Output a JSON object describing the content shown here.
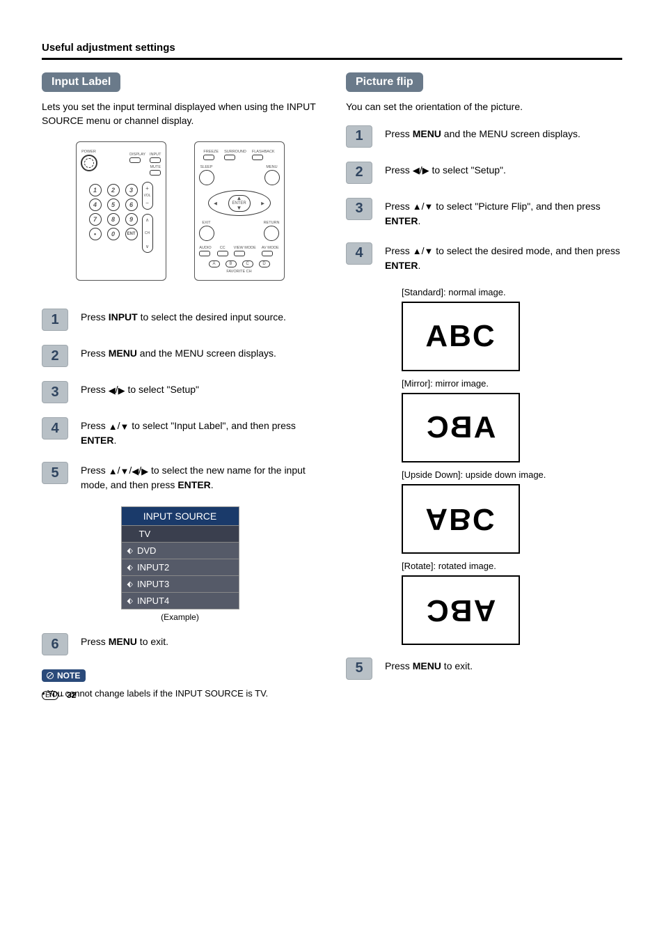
{
  "header": {
    "section_title": "Useful adjustment settings"
  },
  "left": {
    "heading": "Input Label",
    "intro": "Lets you set the input terminal displayed when using the INPUT SOURCE menu or channel display.",
    "remote_left": {
      "labels": {
        "power": "POWER",
        "display": "DISPLAY",
        "input": "INPUT",
        "mute": "MUTE",
        "vol": "VOL",
        "ch": "CH",
        "ent": "ENT"
      },
      "numpad": [
        "1",
        "2",
        "3",
        "4",
        "5",
        "6",
        "7",
        "8",
        "9",
        "0"
      ]
    },
    "remote_right": {
      "labels": {
        "freeze": "FREEZE",
        "surround": "SURROUND",
        "flashback": "FLASHBACK",
        "sleep": "SLEEP",
        "menu": "MENU",
        "enter": "ENTER",
        "exit": "EXIT",
        "return": "RETURN",
        "audio": "AUDIO",
        "cc": "CC",
        "viewmode": "VIEW MODE",
        "avmode": "AV MODE",
        "favorite": "FAVORITE CH"
      },
      "letters": [
        "A",
        "B",
        "C",
        "D"
      ]
    },
    "steps": [
      {
        "num": "1",
        "text_before": "Press ",
        "bold1": "INPUT",
        "text_after": " to select the desired input source."
      },
      {
        "num": "2",
        "text_before": "Press ",
        "bold1": "MENU",
        "text_after": " and the MENU screen displays."
      },
      {
        "num": "3",
        "text_before": "Press ",
        "arrows": "lr",
        "text_after": " to select \"Setup\""
      },
      {
        "num": "4",
        "text_before": "Press ",
        "arrows": "ud",
        "text_mid": " to select \"Input Label\", and then press ",
        "bold2": "ENTER",
        "text_end": "."
      },
      {
        "num": "5",
        "text_before": "Press ",
        "arrows": "udlr",
        "text_mid": " to select the new name for the input mode, and then press ",
        "bold2": "ENTER",
        "text_end": "."
      }
    ],
    "input_source": {
      "title": "INPUT SOURCE",
      "items": [
        {
          "label": "TV",
          "icon": false,
          "selected": true
        },
        {
          "label": "DVD",
          "icon": true,
          "selected": false
        },
        {
          "label": "INPUT2",
          "icon": true,
          "selected": false
        },
        {
          "label": "INPUT3",
          "icon": true,
          "selected": false
        },
        {
          "label": "INPUT4",
          "icon": true,
          "selected": false
        }
      ],
      "caption": "(Example)"
    },
    "step6": {
      "num": "6",
      "text_before": "Press ",
      "bold1": "MENU",
      "text_after": " to exit."
    },
    "note": {
      "badge": "NOTE",
      "text": "• You cannot change labels if the INPUT SOURCE is TV."
    }
  },
  "right": {
    "heading": "Picture flip",
    "intro": "You can set the orientation of the picture.",
    "steps": [
      {
        "num": "1",
        "text_before": "Press ",
        "bold1": "MENU",
        "text_after": " and the MENU screen displays."
      },
      {
        "num": "2",
        "text_before": "Press ",
        "arrows": "lr",
        "text_after": " to select \"Setup\"."
      },
      {
        "num": "3",
        "text_before": "Press ",
        "arrows": "ud",
        "text_mid": " to select \"Picture Flip\", and then press ",
        "bold2": "ENTER",
        "text_end": "."
      },
      {
        "num": "4",
        "text_before": "Press ",
        "arrows": "ud",
        "text_mid": " to select the desired mode, and then press ",
        "bold2": "ENTER",
        "text_end": "."
      }
    ],
    "modes": [
      {
        "label": "[Standard]: normal image.",
        "transform": "none"
      },
      {
        "label": "[Mirror]: mirror image.",
        "transform": "mirror"
      },
      {
        "label": "[Upside Down]: upside down image.",
        "transform": "upside"
      },
      {
        "label": "[Rotate]: rotated image.",
        "transform": "rotate"
      }
    ],
    "abc_text": "ABC",
    "step5": {
      "num": "5",
      "text_before": "Press ",
      "bold1": "MENU",
      "text_after": " to exit."
    }
  },
  "footer": {
    "lang": "EN",
    "sep": "-",
    "page": "32"
  },
  "colors": {
    "pill_bg": "#6a7a8a",
    "step_bg": "#b8c0c6",
    "step_border": "#a0a8ae",
    "step_fg": "#304560",
    "menu_header_bg": "#1a3a6a",
    "menu_row_bg": "#555a68",
    "menu_row_selected_bg": "#3a3f4e",
    "note_bg": "#2a4a7a"
  }
}
